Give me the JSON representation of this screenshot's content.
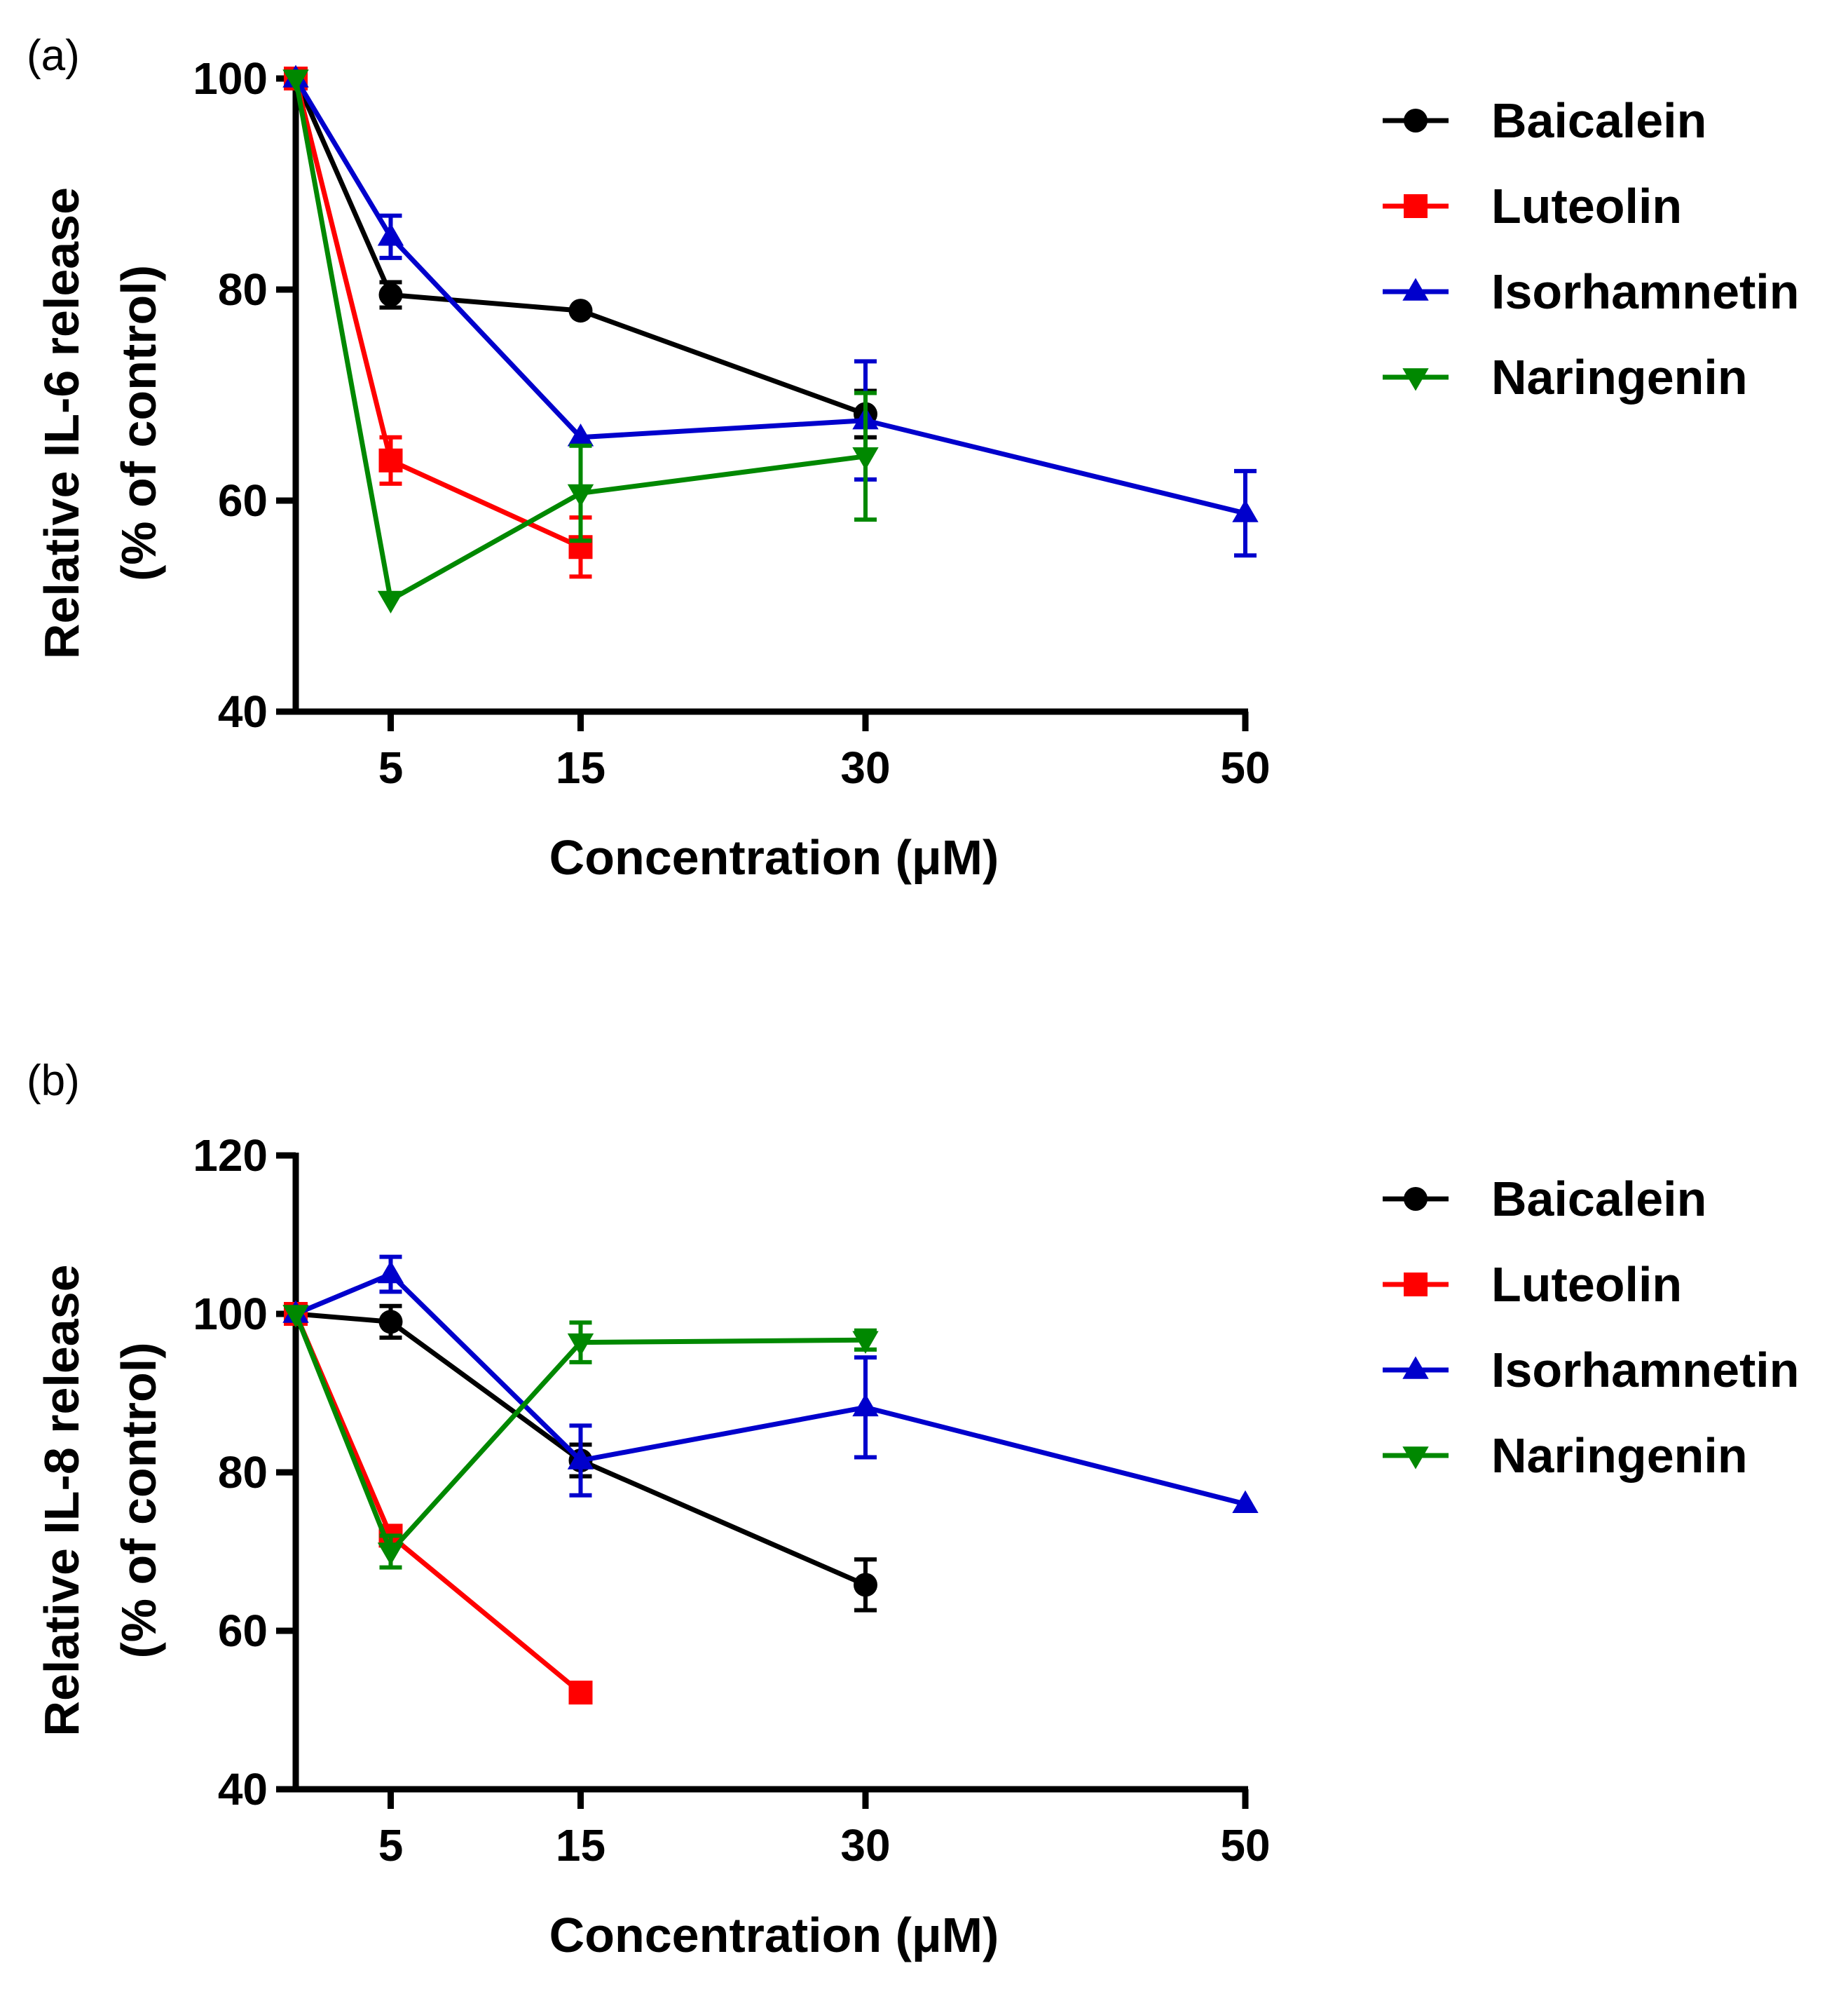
{
  "chart_data": [
    {
      "type": "line",
      "panel_label": "(a)",
      "title": "",
      "xlabel": "Concentration (μM)",
      "ylabel_lines": [
        "Relative IL-6 release",
        "(% of control)"
      ],
      "x_ticks": [
        5,
        15,
        30,
        50
      ],
      "x_tick_labels": [
        "5",
        "15",
        "30",
        "50"
      ],
      "xlim": [
        0,
        50
      ],
      "y_ticks": [
        40,
        60,
        80,
        100
      ],
      "y_tick_labels": [
        "40",
        "60",
        "80",
        "100"
      ],
      "ylim": [
        40,
        100
      ],
      "legend_position": "right",
      "series": [
        {
          "name": "Baicalein",
          "color": "#000000",
          "marker": "circle",
          "x": [
            0,
            5,
            15,
            30
          ],
          "y": [
            100,
            79.5,
            78,
            68.2
          ],
          "err": [
            0,
            1.2,
            0,
            2.2
          ]
        },
        {
          "name": "Luteolin",
          "color": "#ff0000",
          "marker": "square",
          "x": [
            0,
            5,
            15
          ],
          "y": [
            100,
            63.8,
            55.6
          ],
          "err": [
            0,
            2.2,
            2.8
          ]
        },
        {
          "name": "Isorhamnetin",
          "color": "#0000cc",
          "marker": "triangle-up",
          "x": [
            0,
            5,
            15,
            30,
            50
          ],
          "y": [
            100,
            85,
            66,
            67.6,
            58.8
          ],
          "err": [
            0,
            2,
            0,
            5.6,
            4
          ]
        },
        {
          "name": "Naringenin",
          "color": "#008800",
          "marker": "triangle-down",
          "x": [
            0,
            5,
            15,
            30
          ],
          "y": [
            100,
            50.6,
            60.7,
            64.2
          ],
          "err": [
            0,
            0,
            4.5,
            6
          ]
        }
      ]
    },
    {
      "type": "line",
      "panel_label": "(b)",
      "title": "",
      "xlabel": "Concentration (μM)",
      "ylabel_lines": [
        "Relative IL-8 release",
        "(% of control)"
      ],
      "x_ticks": [
        5,
        15,
        30,
        50
      ],
      "x_tick_labels": [
        "5",
        "15",
        "30",
        "50"
      ],
      "xlim": [
        0,
        50
      ],
      "y_ticks": [
        40,
        60,
        80,
        100,
        120
      ],
      "y_tick_labels": [
        "40",
        "60",
        "80",
        "100",
        "120"
      ],
      "ylim": [
        40,
        120
      ],
      "legend_position": "right",
      "series": [
        {
          "name": "Baicalein",
          "color": "#000000",
          "marker": "circle",
          "x": [
            0,
            5,
            15,
            30
          ],
          "y": [
            100,
            99,
            81.5,
            65.8
          ],
          "err": [
            0,
            2,
            2,
            3.2
          ]
        },
        {
          "name": "Luteolin",
          "color": "#ff0000",
          "marker": "square",
          "x": [
            0,
            5,
            15
          ],
          "y": [
            100,
            72,
            52.2
          ],
          "err": [
            0,
            0,
            0
          ]
        },
        {
          "name": "Isorhamnetin",
          "color": "#0000cc",
          "marker": "triangle-up",
          "x": [
            0,
            5,
            15,
            30,
            50
          ],
          "y": [
            100,
            105,
            81.5,
            88.2,
            76
          ],
          "err": [
            0,
            2.2,
            4.4,
            6.3,
            0
          ]
        },
        {
          "name": "Naringenin",
          "color": "#008800",
          "marker": "triangle-down",
          "x": [
            0,
            5,
            15,
            30
          ],
          "y": [
            100,
            70,
            96.4,
            96.7
          ],
          "err": [
            0,
            2,
            2.5,
            1.2
          ]
        }
      ]
    }
  ]
}
